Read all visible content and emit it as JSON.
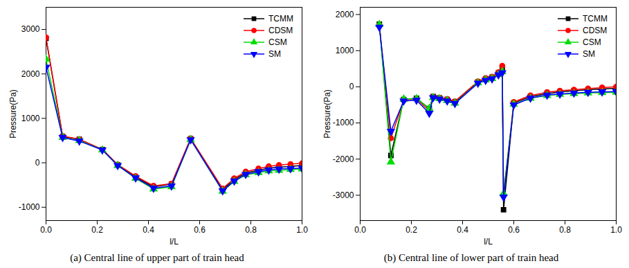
{
  "chart_data": [
    {
      "type": "line",
      "title": "(a) Central line of upper part of train head",
      "x_label": "l/L",
      "y_label": "Pressure(Pa)",
      "xlim": [
        0,
        1
      ],
      "ylim": [
        -1300,
        3500
      ],
      "xticks": [
        {
          "value": 0,
          "label": "0.0"
        },
        0.2,
        0.4,
        0.6,
        0.8,
        {
          "value": 1,
          "label": "1.0"
        }
      ],
      "yticks": [
        -1000,
        0,
        1000,
        2000,
        3000
      ],
      "grid": false,
      "legend": "upper right",
      "x": [
        0,
        0.065,
        0.13,
        0.22,
        0.28,
        0.35,
        0.42,
        0.49,
        0.565,
        0.69,
        0.735,
        0.78,
        0.83,
        0.87,
        0.91,
        0.955,
        1.0
      ],
      "series": [
        {
          "name": "TCMM",
          "color": "#000000",
          "marker": "square",
          "values": [
            2800,
            590,
            530,
            300,
            -50,
            -320,
            -540,
            -480,
            540,
            -600,
            -380,
            -230,
            -170,
            -120,
            -100,
            -80,
            -60
          ]
        },
        {
          "name": "CDSM",
          "color": "#ff0000",
          "marker": "circle",
          "values": [
            2820,
            600,
            530,
            300,
            -40,
            -300,
            -520,
            -470,
            550,
            -580,
            -350,
            -200,
            -130,
            -80,
            -50,
            -30,
            -10
          ]
        },
        {
          "name": "CSM",
          "color": "#00dd00",
          "marker": "triangle-up",
          "values": [
            2330,
            570,
            500,
            290,
            -60,
            -350,
            -590,
            -540,
            520,
            -640,
            -420,
            -270,
            -220,
            -180,
            -170,
            -150,
            -140
          ]
        },
        {
          "name": "SM",
          "color": "#0000ff",
          "marker": "triangle-down",
          "values": [
            2150,
            570,
            490,
            290,
            -60,
            -340,
            -570,
            -520,
            520,
            -630,
            -410,
            -260,
            -200,
            -160,
            -140,
            -130,
            -120
          ]
        }
      ]
    },
    {
      "type": "line",
      "title": "(b) Central line of lower part of train head",
      "x_label": "l/L",
      "y_label": "Pressure(Pa)",
      "xlim": [
        0,
        1
      ],
      "ylim": [
        -3700,
        2200
      ],
      "xticks": [
        {
          "value": 0,
          "label": "0.0"
        },
        0.2,
        0.4,
        0.6,
        0.8,
        {
          "value": 1,
          "label": "1.0"
        }
      ],
      "yticks": [
        -3000,
        -2000,
        -1000,
        0,
        1000,
        2000
      ],
      "grid": false,
      "legend": "upper right",
      "x": [
        0.075,
        0.12,
        0.17,
        0.22,
        0.27,
        0.285,
        0.31,
        0.34,
        0.37,
        0.46,
        0.49,
        0.515,
        0.54,
        0.555,
        0.56,
        0.6,
        0.665,
        0.73,
        0.78,
        0.835,
        0.89,
        0.945,
        1.0
      ],
      "series": [
        {
          "name": "TCMM",
          "color": "#000000",
          "marker": "square",
          "values": [
            1730,
            -1900,
            -350,
            -320,
            -600,
            -270,
            -310,
            -350,
            -420,
            130,
            220,
            260,
            380,
            490,
            -3400,
            -450,
            -270,
            -190,
            -140,
            -110,
            -80,
            -60,
            -40
          ]
        },
        {
          "name": "CDSM",
          "color": "#ff0000",
          "marker": "circle",
          "values": [
            1700,
            -1420,
            -360,
            -340,
            -660,
            -280,
            -300,
            -340,
            -400,
            150,
            240,
            280,
            400,
            580,
            -3000,
            -420,
            -240,
            -150,
            -110,
            -80,
            -50,
            -20,
            0
          ]
        },
        {
          "name": "CSM",
          "color": "#00dd00",
          "marker": "triangle-up",
          "values": [
            1720,
            -2080,
            -340,
            -330,
            -600,
            -300,
            -330,
            -380,
            -450,
            110,
            190,
            230,
            340,
            420,
            -2950,
            -480,
            -320,
            -240,
            -210,
            -190,
            -170,
            -160,
            -150
          ]
        },
        {
          "name": "SM",
          "color": "#0000ff",
          "marker": "triangle-down",
          "values": [
            1650,
            -1230,
            -390,
            -370,
            -730,
            -300,
            -340,
            -390,
            -460,
            100,
            180,
            220,
            330,
            390,
            -3050,
            -500,
            -310,
            -230,
            -200,
            -170,
            -150,
            -140,
            -130
          ]
        }
      ]
    }
  ]
}
